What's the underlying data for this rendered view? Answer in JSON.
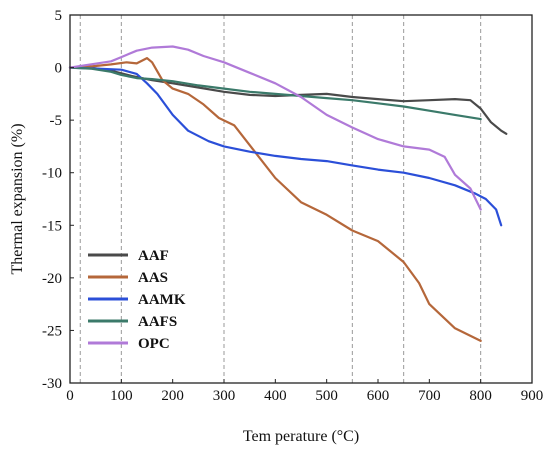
{
  "chart_data": {
    "type": "line",
    "title": "",
    "xlabel": "Tem perature (°C)",
    "ylabel": "Thermal expansion (%)",
    "xlim": [
      0,
      900
    ],
    "ylim": [
      -30,
      5
    ],
    "xticks": [
      0,
      100,
      200,
      300,
      400,
      500,
      600,
      700,
      800,
      900
    ],
    "yticks": [
      5,
      0,
      -5,
      -10,
      -15,
      -20,
      -25,
      -30
    ],
    "vertical_reference_lines_x": [
      20,
      100,
      300,
      550,
      650,
      800
    ],
    "grid": false,
    "legend_position": "bottom-left",
    "series": [
      {
        "name": "AAF",
        "color": "#4a4a4a",
        "points": [
          [
            0,
            0
          ],
          [
            40,
            0
          ],
          [
            80,
            -0.3
          ],
          [
            120,
            -0.8
          ],
          [
            160,
            -1.2
          ],
          [
            200,
            -1.5
          ],
          [
            250,
            -1.9
          ],
          [
            300,
            -2.3
          ],
          [
            350,
            -2.6
          ],
          [
            400,
            -2.7
          ],
          [
            450,
            -2.6
          ],
          [
            500,
            -2.5
          ],
          [
            550,
            -2.8
          ],
          [
            600,
            -3.0
          ],
          [
            650,
            -3.2
          ],
          [
            700,
            -3.1
          ],
          [
            750,
            -3.0
          ],
          [
            780,
            -3.1
          ],
          [
            800,
            -3.9
          ],
          [
            820,
            -5.2
          ],
          [
            840,
            -6.0
          ],
          [
            850,
            -6.3
          ]
        ]
      },
      {
        "name": "AAS",
        "color": "#b5673a",
        "points": [
          [
            0,
            0
          ],
          [
            40,
            0.1
          ],
          [
            80,
            0.3
          ],
          [
            110,
            0.5
          ],
          [
            130,
            0.4
          ],
          [
            150,
            0.9
          ],
          [
            160,
            0.5
          ],
          [
            180,
            -1.2
          ],
          [
            200,
            -2.0
          ],
          [
            230,
            -2.5
          ],
          [
            260,
            -3.5
          ],
          [
            290,
            -4.8
          ],
          [
            320,
            -5.5
          ],
          [
            360,
            -8.0
          ],
          [
            400,
            -10.5
          ],
          [
            450,
            -12.8
          ],
          [
            500,
            -14.0
          ],
          [
            550,
            -15.5
          ],
          [
            600,
            -16.5
          ],
          [
            650,
            -18.5
          ],
          [
            680,
            -20.5
          ],
          [
            700,
            -22.5
          ],
          [
            750,
            -24.8
          ],
          [
            800,
            -26.0
          ]
        ]
      },
      {
        "name": "AAMK",
        "color": "#2b4fd8",
        "points": [
          [
            0,
            0
          ],
          [
            50,
            -0.1
          ],
          [
            100,
            -0.2
          ],
          [
            130,
            -0.6
          ],
          [
            150,
            -1.5
          ],
          [
            170,
            -2.5
          ],
          [
            200,
            -4.5
          ],
          [
            230,
            -6.0
          ],
          [
            270,
            -7.0
          ],
          [
            300,
            -7.5
          ],
          [
            350,
            -8.0
          ],
          [
            400,
            -8.4
          ],
          [
            450,
            -8.7
          ],
          [
            500,
            -8.9
          ],
          [
            550,
            -9.3
          ],
          [
            600,
            -9.7
          ],
          [
            650,
            -10.0
          ],
          [
            700,
            -10.5
          ],
          [
            750,
            -11.2
          ],
          [
            790,
            -12.0
          ],
          [
            810,
            -12.5
          ],
          [
            830,
            -13.5
          ],
          [
            840,
            -15.0
          ]
        ]
      },
      {
        "name": "AAFS",
        "color": "#3b7a6a",
        "points": [
          [
            0,
            0
          ],
          [
            40,
            -0.1
          ],
          [
            80,
            -0.4
          ],
          [
            100,
            -0.7
          ],
          [
            130,
            -1.0
          ],
          [
            160,
            -1.1
          ],
          [
            200,
            -1.3
          ],
          [
            250,
            -1.7
          ],
          [
            300,
            -2.0
          ],
          [
            350,
            -2.3
          ],
          [
            400,
            -2.5
          ],
          [
            450,
            -2.7
          ],
          [
            500,
            -2.9
          ],
          [
            550,
            -3.1
          ],
          [
            600,
            -3.4
          ],
          [
            650,
            -3.7
          ],
          [
            700,
            -4.1
          ],
          [
            750,
            -4.5
          ],
          [
            800,
            -4.9
          ]
        ]
      },
      {
        "name": "OPC",
        "color": "#b07ad8",
        "points": [
          [
            0,
            0
          ],
          [
            40,
            0.3
          ],
          [
            80,
            0.6
          ],
          [
            100,
            1.0
          ],
          [
            130,
            1.6
          ],
          [
            160,
            1.9
          ],
          [
            200,
            2.0
          ],
          [
            230,
            1.7
          ],
          [
            260,
            1.1
          ],
          [
            300,
            0.5
          ],
          [
            350,
            -0.5
          ],
          [
            400,
            -1.5
          ],
          [
            450,
            -2.8
          ],
          [
            500,
            -4.5
          ],
          [
            550,
            -5.7
          ],
          [
            600,
            -6.8
          ],
          [
            650,
            -7.5
          ],
          [
            700,
            -7.8
          ],
          [
            730,
            -8.5
          ],
          [
            750,
            -10.2
          ],
          [
            780,
            -11.5
          ],
          [
            800,
            -13.5
          ]
        ]
      }
    ]
  }
}
